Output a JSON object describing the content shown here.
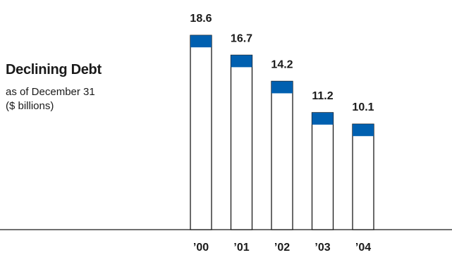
{
  "chart_data": {
    "type": "bar",
    "title": "Declining Debt",
    "subtitle": [
      "as of December 31",
      "($ billions)"
    ],
    "categories": [
      "’00",
      "’01",
      "’02",
      "’03",
      "’04"
    ],
    "values": [
      18.6,
      16.7,
      14.2,
      11.2,
      10.1
    ],
    "value_labels": [
      "18.6",
      "16.7",
      "14.2",
      "11.2",
      "10.1"
    ],
    "xlabel": "",
    "ylabel": "",
    "ylim": [
      0,
      20
    ],
    "grid": false,
    "legend": "none",
    "colors": {
      "bar_fill": "#ffffff",
      "bar_outline": "#1a1a1a",
      "cap": "#0060b0",
      "baseline": "#1a1a1a"
    }
  }
}
